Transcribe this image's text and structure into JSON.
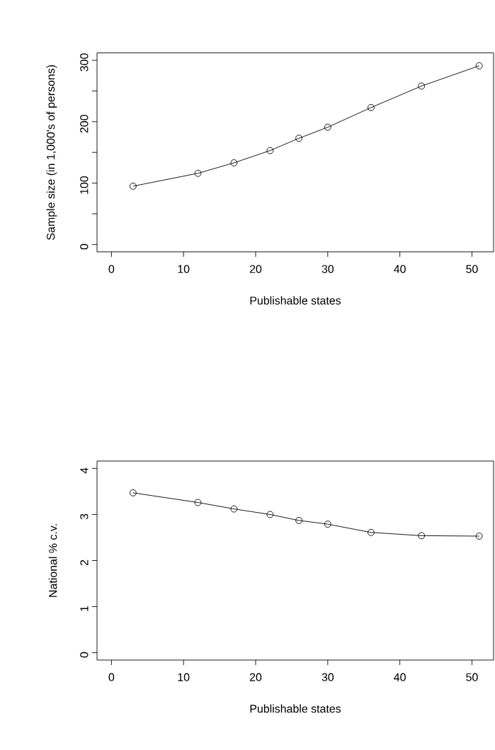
{
  "chart_data": [
    {
      "type": "line",
      "xlabel": "Publishable states",
      "ylabel": "Sample size (in 1,000's of persons)",
      "marker": "circle",
      "line_style": "solid",
      "xlim": [
        -2,
        53
      ],
      "ylim": [
        -12,
        312
      ],
      "xticks": [
        0,
        10,
        20,
        30,
        40,
        50
      ],
      "yticks": [
        0,
        {
          "value": 50,
          "label": null
        },
        100,
        {
          "value": 150,
          "label": null
        },
        200,
        {
          "value": 250,
          "label": null
        },
        300
      ],
      "series": [
        {
          "color": "#000000",
          "x": [
            3,
            12,
            17,
            22,
            26,
            30,
            36,
            43,
            51
          ],
          "values": [
            95,
            116,
            133,
            153,
            173,
            191,
            223,
            258,
            291
          ]
        }
      ]
    },
    {
      "type": "line",
      "xlabel": "Publishable states",
      "ylabel": "National % c.v.",
      "marker": "circle",
      "line_style": "solid",
      "xlim": [
        -2,
        53
      ],
      "ylim": [
        -0.16,
        4.16
      ],
      "xticks": [
        0,
        10,
        20,
        30,
        40,
        50
      ],
      "yticks": [
        0,
        1,
        2,
        3,
        4
      ],
      "series": [
        {
          "color": "#000000",
          "x": [
            3,
            12,
            17,
            22,
            26,
            30,
            36,
            43,
            51
          ],
          "values": [
            3.47,
            3.26,
            3.12,
            3.0,
            2.87,
            2.79,
            2.61,
            2.54,
            2.53
          ]
        }
      ]
    }
  ]
}
